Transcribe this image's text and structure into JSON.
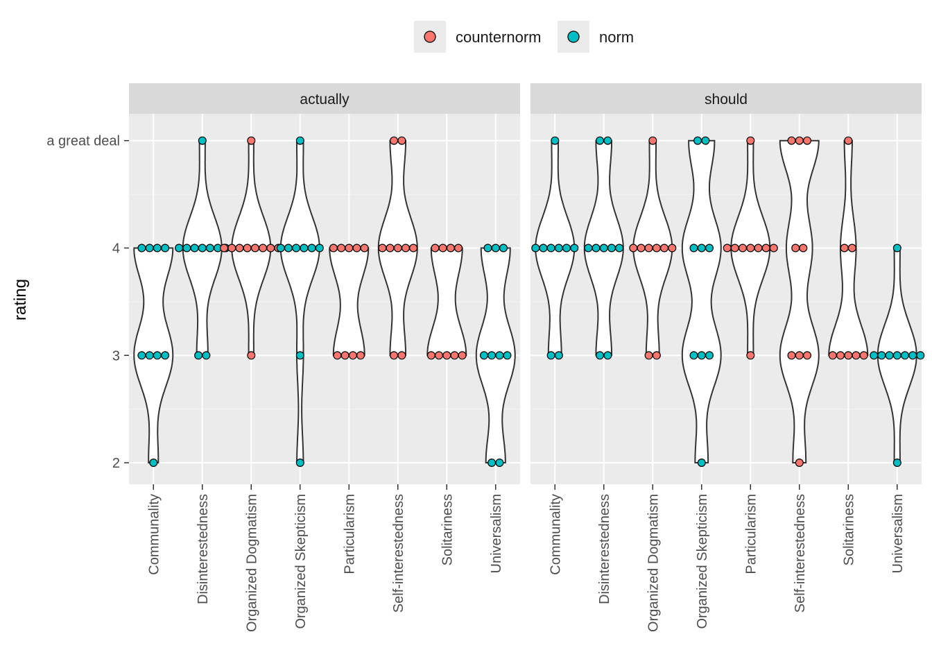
{
  "chart_data": {
    "type": "violin",
    "ylabel": "rating",
    "y_ticks": [
      {
        "value": 2,
        "label": "2"
      },
      {
        "value": 3,
        "label": "3"
      },
      {
        "value": 4,
        "label": "4"
      },
      {
        "value": 5,
        "label": "a great deal"
      }
    ],
    "ylim": [
      1.8,
      5.25
    ],
    "categories": [
      "Communality",
      "Disinterestedness",
      "Organized Dogmatism",
      "Organized Skepticism",
      "Particularism",
      "Self-interestedness",
      "Solitariness",
      "Universalism"
    ],
    "category_type": {
      "Communality": "norm",
      "Disinterestedness": "norm",
      "Organized Dogmatism": "counternorm",
      "Organized Skepticism": "norm",
      "Particularism": "counternorm",
      "Self-interestedness": "counternorm",
      "Solitariness": "counternorm",
      "Universalism": "norm"
    },
    "legend": {
      "position": "top",
      "items": [
        {
          "name": "counternorm",
          "color": "#F8766D"
        },
        {
          "name": "norm",
          "color": "#00BFC4"
        }
      ]
    },
    "panels": [
      {
        "title": "actually",
        "groups": [
          {
            "category": "Communality",
            "counts": {
              "2": 1,
              "3": 4,
              "4": 4,
              "5": 0
            }
          },
          {
            "category": "Disinterestedness",
            "counts": {
              "2": 0,
              "3": 2,
              "4": 7,
              "5": 1
            }
          },
          {
            "category": "Organized Dogmatism",
            "counts": {
              "2": 0,
              "3": 1,
              "4": 8,
              "5": 1
            }
          },
          {
            "category": "Organized Skepticism",
            "counts": {
              "2": 1,
              "3": 1,
              "4": 6,
              "5": 1
            }
          },
          {
            "category": "Particularism",
            "counts": {
              "2": 0,
              "3": 4,
              "4": 5,
              "5": 0
            }
          },
          {
            "category": "Self-interestedness",
            "counts": {
              "2": 0,
              "3": 2,
              "4": 5,
              "5": 2
            }
          },
          {
            "category": "Solitariness",
            "counts": {
              "2": 0,
              "3": 5,
              "4": 4,
              "5": 0
            }
          },
          {
            "category": "Universalism",
            "counts": {
              "2": 2,
              "3": 4,
              "4": 3,
              "5": 0
            }
          }
        ]
      },
      {
        "title": "should",
        "groups": [
          {
            "category": "Communality",
            "counts": {
              "2": 0,
              "3": 2,
              "4": 6,
              "5": 1
            }
          },
          {
            "category": "Disinterestedness",
            "counts": {
              "2": 0,
              "3": 2,
              "4": 5,
              "5": 2
            }
          },
          {
            "category": "Organized Dogmatism",
            "counts": {
              "2": 0,
              "3": 2,
              "4": 6,
              "5": 1
            }
          },
          {
            "category": "Organized Skepticism",
            "counts": {
              "2": 1,
              "3": 3,
              "4": 3,
              "5": 2
            }
          },
          {
            "category": "Particularism",
            "counts": {
              "2": 0,
              "3": 1,
              "4": 7,
              "5": 1
            }
          },
          {
            "category": "Self-interestedness",
            "counts": {
              "2": 1,
              "3": 3,
              "4": 2,
              "5": 3
            }
          },
          {
            "category": "Solitariness",
            "counts": {
              "2": 0,
              "3": 5,
              "4": 2,
              "5": 1
            }
          },
          {
            "category": "Universalism",
            "counts": {
              "2": 1,
              "3": 7,
              "4": 1,
              "5": 0
            }
          }
        ]
      }
    ]
  }
}
